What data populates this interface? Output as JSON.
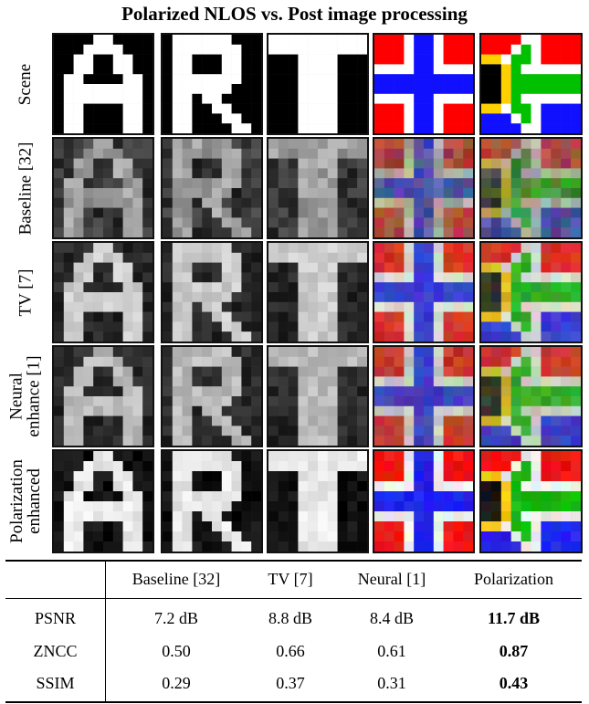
{
  "title": "Polarized NLOS vs. Post image processing",
  "row_labels": [
    {
      "name": "scene",
      "lines": [
        "Scene"
      ]
    },
    {
      "name": "baseline",
      "lines": [
        "Baseline [32]"
      ]
    },
    {
      "name": "tv",
      "lines": [
        "TV [7]"
      ]
    },
    {
      "name": "neural",
      "lines": [
        "Neural",
        "enhance [1]"
      ]
    },
    {
      "name": "polarization",
      "lines": [
        "Polarization",
        "enhanced"
      ]
    }
  ],
  "table": {
    "columns": [
      "",
      "Baseline [32]",
      "TV [7]",
      "Neural [1]",
      "Polarization"
    ],
    "rows": [
      {
        "metric": "PSNR",
        "values": [
          "7.2 dB",
          "8.8 dB",
          "8.4 dB",
          "11.7 dB"
        ]
      },
      {
        "metric": "ZNCC",
        "values": [
          "0.50",
          "0.66",
          "0.61",
          "0.87"
        ]
      },
      {
        "metric": "SSIM",
        "values": [
          "0.29",
          "0.37",
          "0.31",
          "0.43"
        ]
      }
    ],
    "bold_column": 3
  },
  "colors": {
    "flag_red": "#ff0000",
    "flag_white": "#ffffff",
    "flag_blue": "#1010ff",
    "flag_green": "#00c000",
    "flag_yellow": "#ffd000",
    "flag_black": "#000000"
  },
  "scene_glyphs": [
    "A",
    "R",
    "T",
    "norway-flag",
    "south-africa-flag"
  ]
}
